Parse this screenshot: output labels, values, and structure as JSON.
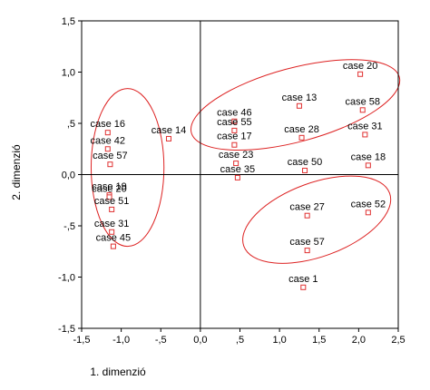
{
  "chart_data": {
    "type": "scatter",
    "xlabel": "1. dimenzió",
    "ylabel": "2. dimenzió",
    "xlim": [
      -1.5,
      2.5
    ],
    "ylim": [
      -1.5,
      1.5
    ],
    "xticks": [
      -1.5,
      -1.0,
      -0.5,
      0.0,
      0.5,
      1.0,
      1.5,
      2.0,
      2.5
    ],
    "yticks": [
      -1.5,
      -1.0,
      -0.5,
      0.0,
      0.5,
      1.0,
      1.5
    ],
    "xtick_labels": [
      "-1,5",
      "-1,0",
      "-,5",
      "0,0",
      ",5",
      "1,0",
      "1,5",
      "2,0",
      "2,5"
    ],
    "ytick_labels": [
      "-1,5",
      "-1,0",
      "-,5",
      "0,0",
      ",5",
      "1,0",
      "1,5"
    ],
    "reference_lines": {
      "x": 0,
      "y": 0
    },
    "grid": false,
    "marker": {
      "shape": "open-square",
      "color": "#e03030"
    },
    "ellipse_color": "#dd2222",
    "points": [
      {
        "label": "case 20",
        "x": 2.02,
        "y": 0.98
      },
      {
        "label": "case 13",
        "x": 1.25,
        "y": 0.67
      },
      {
        "label": "case 58",
        "x": 2.05,
        "y": 0.63
      },
      {
        "label": "case 46",
        "x": 0.43,
        "y": 0.52
      },
      {
        "label": "case 55",
        "x": 0.43,
        "y": 0.43
      },
      {
        "label": "case 31",
        "x": 2.08,
        "y": 0.39
      },
      {
        "label": "case 28",
        "x": 1.28,
        "y": 0.36
      },
      {
        "label": "case 17",
        "x": 0.43,
        "y": 0.29
      },
      {
        "label": "case 23",
        "x": 0.45,
        "y": 0.11
      },
      {
        "label": "case 35",
        "x": 0.47,
        "y": -0.03
      },
      {
        "label": "case 50",
        "x": 1.32,
        "y": 0.04
      },
      {
        "label": "case 18",
        "x": 2.12,
        "y": 0.09
      },
      {
        "label": "case 27",
        "x": 1.35,
        "y": -0.4
      },
      {
        "label": "case 52",
        "x": 2.12,
        "y": -0.37
      },
      {
        "label": "case 57",
        "x": 1.35,
        "y": -0.74
      },
      {
        "label": "case 1",
        "x": 1.3,
        "y": -1.1
      },
      {
        "label": "case 14",
        "x": -0.4,
        "y": 0.35
      },
      {
        "label": "case 16",
        "x": -1.17,
        "y": 0.41
      },
      {
        "label": "case 42",
        "x": -1.17,
        "y": 0.25
      },
      {
        "label": "case 57",
        "x": -1.14,
        "y": 0.1
      },
      {
        "label": "case 19",
        "x": -1.15,
        "y": -0.2
      },
      {
        "label": "case 20",
        "x": -1.15,
        "y": -0.22
      },
      {
        "label": "case 51",
        "x": -1.12,
        "y": -0.34
      },
      {
        "label": "case 31",
        "x": -1.12,
        "y": -0.56
      },
      {
        "label": "case 45",
        "x": -1.1,
        "y": -0.7
      }
    ]
  }
}
